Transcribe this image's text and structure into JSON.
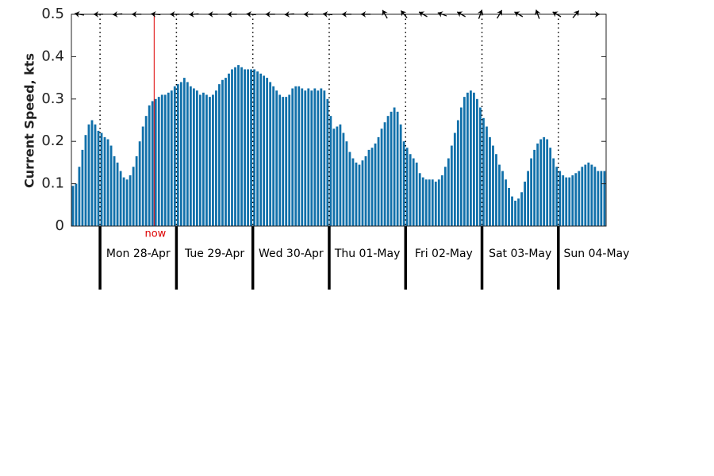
{
  "chart_data": {
    "type": "bar",
    "y_label": "Current Speed, kts",
    "color": "#1170aa",
    "ylim": [
      0,
      0.5
    ],
    "yticks": [
      0,
      0.1,
      0.2,
      0.3,
      0.4,
      0.5
    ],
    "day_labels": [
      "Mon 28-Apr",
      "Tue 29-Apr",
      "Wed 30-Apr",
      "Thu 01-May",
      "Fri 02-May",
      "Sat 03-May",
      "Sun 04-May"
    ],
    "day_start_index": [
      9,
      33,
      57,
      81,
      105,
      129,
      153
    ],
    "now": {
      "text": "now",
      "index": 26
    },
    "direction_deg": [
      280,
      270,
      265,
      270,
      275,
      270,
      265,
      270,
      270,
      275,
      270,
      265,
      270,
      275,
      270,
      270,
      330,
      320,
      300,
      290,
      300,
      20,
      30,
      300,
      340,
      300,
      40,
      90
    ],
    "values": [
      0.095,
      0.1,
      0.14,
      0.18,
      0.215,
      0.24,
      0.25,
      0.24,
      0.225,
      0.22,
      0.21,
      0.205,
      0.19,
      0.165,
      0.15,
      0.13,
      0.115,
      0.11,
      0.12,
      0.14,
      0.165,
      0.2,
      0.235,
      0.26,
      0.285,
      0.295,
      0.3,
      0.305,
      0.31,
      0.31,
      0.315,
      0.32,
      0.33,
      0.335,
      0.34,
      0.35,
      0.34,
      0.33,
      0.325,
      0.32,
      0.31,
      0.315,
      0.31,
      0.305,
      0.31,
      0.32,
      0.335,
      0.345,
      0.35,
      0.36,
      0.37,
      0.375,
      0.38,
      0.375,
      0.37,
      0.37,
      0.37,
      0.37,
      0.365,
      0.36,
      0.355,
      0.35,
      0.34,
      0.33,
      0.32,
      0.31,
      0.305,
      0.305,
      0.31,
      0.325,
      0.33,
      0.33,
      0.325,
      0.32,
      0.325,
      0.32,
      0.325,
      0.32,
      0.325,
      0.32,
      0.3,
      0.26,
      0.23,
      0.235,
      0.24,
      0.22,
      0.2,
      0.175,
      0.16,
      0.15,
      0.145,
      0.155,
      0.165,
      0.18,
      0.185,
      0.195,
      0.21,
      0.23,
      0.245,
      0.26,
      0.27,
      0.28,
      0.27,
      0.24,
      0.2,
      0.185,
      0.17,
      0.16,
      0.15,
      0.125,
      0.115,
      0.11,
      0.11,
      0.11,
      0.105,
      0.11,
      0.12,
      0.14,
      0.16,
      0.19,
      0.22,
      0.25,
      0.28,
      0.305,
      0.315,
      0.32,
      0.315,
      0.3,
      0.28,
      0.255,
      0.235,
      0.21,
      0.19,
      0.17,
      0.145,
      0.13,
      0.11,
      0.09,
      0.07,
      0.06,
      0.065,
      0.08,
      0.105,
      0.13,
      0.16,
      0.18,
      0.195,
      0.205,
      0.21,
      0.205,
      0.185,
      0.16,
      0.14,
      0.13,
      0.12,
      0.115,
      0.115,
      0.12,
      0.125,
      0.13,
      0.14,
      0.145,
      0.15,
      0.145,
      0.14,
      0.13,
      0.13,
      0.13
    ]
  }
}
